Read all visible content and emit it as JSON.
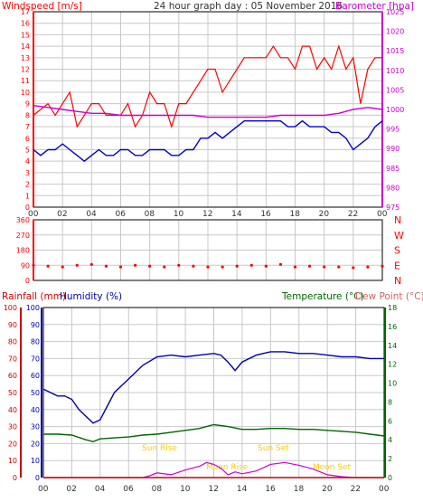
{
  "header": {
    "title": "24 hour graph day : 05 November 2016",
    "left_label": "Windspeed [m/s]",
    "right_label": "Barometer [hpa]"
  },
  "x_ticks": [
    "00",
    "02",
    "04",
    "06",
    "08",
    "10",
    "12",
    "14",
    "16",
    "18",
    "20",
    "22",
    "00"
  ],
  "colors": {
    "wind_gust": "#ff0000",
    "wind_avg": "#0000cc",
    "barometer": "#cc00cc",
    "direction": "#ff0000",
    "humidity": "#0000aa",
    "temperature": "#006600",
    "dewpoint": "#cc6666",
    "rainfall": "#cc0000",
    "solar": "#cc00cc",
    "almanac": "#ffcc00",
    "grid": "#c8c8c8"
  },
  "chart_data": [
    {
      "type": "line",
      "x_label": "hour",
      "y_label": "Windspeed [m/s]",
      "y2_label": "Barometer [hpa]",
      "ylim": [
        0,
        17
      ],
      "y2lim": [
        975,
        1025
      ],
      "y_ticks": [
        "0",
        "1",
        "2",
        "3",
        "4",
        "5",
        "6",
        "7",
        "8",
        "9",
        "10",
        "11",
        "12",
        "13",
        "14",
        "15",
        "16",
        "17"
      ],
      "y2_ticks": [
        "975",
        "980",
        "985",
        "990",
        "995",
        "1000",
        "1005",
        "1010",
        "1015",
        "1020",
        "1025"
      ],
      "series": [
        {
          "name": "gust",
          "x": [
            0,
            0.5,
            1,
            1.5,
            2,
            2.5,
            3,
            3.5,
            4,
            4.5,
            5,
            5.5,
            6,
            6.5,
            7,
            7.5,
            8,
            8.5,
            9,
            9.5,
            10,
            10.5,
            11,
            11.5,
            12,
            12.5,
            13,
            13.5,
            14,
            14.5,
            15,
            15.5,
            16,
            16.5,
            17,
            17.5,
            18,
            18.5,
            19,
            19.5,
            20,
            20.5,
            21,
            21.5,
            22,
            22.5,
            23,
            23.5,
            24
          ],
          "values": [
            8,
            8.5,
            9,
            8,
            9,
            10,
            7,
            8,
            9,
            9,
            8,
            8,
            8,
            9,
            7,
            8,
            10,
            9,
            9,
            7,
            9,
            9,
            10,
            11,
            12,
            12,
            10,
            11,
            12,
            13,
            13,
            13,
            13,
            14,
            13,
            13,
            12,
            14,
            14,
            12,
            13,
            12,
            14,
            12,
            13,
            9,
            12,
            13,
            13
          ]
        },
        {
          "name": "average",
          "x": [
            0,
            0.5,
            1,
            1.5,
            2,
            2.5,
            3,
            3.5,
            4,
            4.5,
            5,
            5.5,
            6,
            6.5,
            7,
            7.5,
            8,
            8.5,
            9,
            9.5,
            10,
            10.5,
            11,
            11.5,
            12,
            12.5,
            13,
            13.5,
            14,
            14.5,
            15,
            15.5,
            16,
            16.5,
            17,
            17.5,
            18,
            18.5,
            19,
            19.5,
            20,
            20.5,
            21,
            21.5,
            22,
            22.5,
            23,
            23.5,
            24
          ],
          "values": [
            5,
            4.5,
            5,
            5,
            5.5,
            5,
            4.5,
            4,
            4.5,
            5,
            4.5,
            4.5,
            5,
            5,
            4.5,
            4.5,
            5,
            5,
            5,
            4.5,
            4.5,
            5,
            5,
            6,
            6,
            6.5,
            6,
            6.5,
            7,
            7.5,
            7.5,
            7.5,
            7.5,
            7.5,
            7.5,
            7,
            7,
            7.5,
            7,
            7,
            7,
            6.5,
            6.5,
            6,
            5,
            5.5,
            6,
            7,
            7.5
          ]
        },
        {
          "name": "barometer",
          "axis": "y2",
          "x": [
            0,
            1,
            2,
            3,
            4,
            5,
            6,
            7,
            8,
            9,
            10,
            11,
            12,
            13,
            14,
            15,
            16,
            17,
            18,
            19,
            20,
            21,
            22,
            23,
            24
          ],
          "values": [
            1001,
            1000.5,
            1000,
            999.5,
            999,
            999,
            998.5,
            998.5,
            998.5,
            998.5,
            998.5,
            998.5,
            998,
            998,
            998,
            998,
            998,
            998.5,
            998.5,
            998.5,
            998.5,
            999,
            1000,
            1000.5,
            1000
          ]
        }
      ]
    },
    {
      "type": "scatter",
      "x_label": "hour",
      "y_label": "Wind direction",
      "ylim": [
        0,
        360
      ],
      "y_ticks": [
        "0",
        "90",
        "180",
        "270",
        "360"
      ],
      "compass_labels": [
        "N",
        "W",
        "S",
        "E",
        "N"
      ],
      "series": [
        {
          "name": "direction",
          "x": [
            0,
            1,
            2,
            3,
            4,
            5,
            6,
            7,
            8,
            9,
            10,
            11,
            12,
            13,
            14,
            15,
            16,
            17,
            18,
            19,
            20,
            21,
            22,
            23,
            24
          ],
          "values": [
            90,
            85,
            80,
            90,
            95,
            85,
            80,
            90,
            85,
            80,
            90,
            85,
            80,
            80,
            85,
            90,
            85,
            95,
            80,
            85,
            80,
            80,
            75,
            80,
            85
          ]
        }
      ]
    },
    {
      "type": "line",
      "x_label": "hour",
      "y_label": "Rainfall (mm)",
      "y_label_2": "Humidity (%)",
      "y2_label": "Temperature (°C)",
      "y2_label_2": "Dew Point (°C)",
      "ylim": [
        0,
        100
      ],
      "y2lim": [
        0,
        18
      ],
      "y_ticks": [
        "0",
        "10",
        "20",
        "30",
        "40",
        "50",
        "60",
        "70",
        "80",
        "90",
        "100"
      ],
      "y2_ticks": [
        "0",
        "2",
        "4",
        "6",
        "8",
        "10",
        "12",
        "14",
        "16",
        "18"
      ],
      "annotations": [
        "Sun Rise",
        "Sun Set",
        "Moon Rise",
        "Moon Set"
      ],
      "series": [
        {
          "name": "humidity",
          "x": [
            0,
            0.5,
            1,
            1.5,
            2,
            2.5,
            3,
            3.5,
            4,
            4.5,
            5,
            5.5,
            6,
            7,
            8,
            9,
            10,
            11,
            12,
            12.5,
            13,
            13.5,
            14,
            15,
            16,
            17,
            18,
            19,
            20,
            21,
            22,
            23,
            24
          ],
          "values": [
            52,
            50,
            48,
            48,
            46,
            40,
            36,
            32,
            34,
            42,
            50,
            54,
            58,
            66,
            71,
            72,
            71,
            72,
            73,
            72,
            68,
            63,
            68,
            72,
            74,
            74,
            73,
            73,
            72,
            71,
            71,
            70,
            70
          ]
        },
        {
          "name": "temperature",
          "axis": "y2",
          "x": [
            0,
            1,
            2,
            3,
            3.5,
            4,
            5,
            6,
            7,
            8,
            9,
            10,
            11,
            12,
            13,
            14,
            15,
            16,
            17,
            18,
            19,
            20,
            21,
            22,
            23,
            24
          ],
          "values": [
            4.6,
            4.6,
            4.5,
            4,
            3.8,
            4.1,
            4.2,
            4.3,
            4.5,
            4.6,
            4.8,
            5,
            5.2,
            5.6,
            5.4,
            5.1,
            5.1,
            5.2,
            5.2,
            5.1,
            5.1,
            5,
            4.9,
            4.8,
            4.6,
            4.4
          ]
        },
        {
          "name": "rainfall",
          "x": [
            0,
            1,
            2,
            3,
            4,
            5,
            6,
            7,
            8,
            9,
            10,
            11,
            12,
            13,
            14,
            15,
            16,
            17,
            18,
            19,
            20,
            21,
            22,
            23,
            24
          ],
          "values": [
            0,
            0,
            0,
            0,
            0,
            0,
            0,
            0,
            0,
            0,
            0,
            0,
            0,
            0,
            0,
            0,
            0,
            0,
            0,
            0,
            0,
            0,
            0,
            0,
            0
          ]
        },
        {
          "name": "solar",
          "axis": "y2",
          "x": [
            0,
            6,
            7,
            7.5,
            8,
            9,
            10,
            11,
            11.5,
            12,
            12.5,
            13,
            13.5,
            14,
            15,
            16,
            17,
            18,
            19,
            20,
            21,
            22,
            23,
            24
          ],
          "values": [
            0,
            0,
            0,
            0.2,
            0.5,
            0.3,
            0.8,
            1.2,
            1.6,
            1.4,
            1.0,
            0.3,
            0.6,
            0.4,
            0.7,
            1.4,
            1.6,
            1.3,
            0.9,
            0.3,
            0.1,
            0,
            0,
            0
          ]
        }
      ]
    }
  ]
}
